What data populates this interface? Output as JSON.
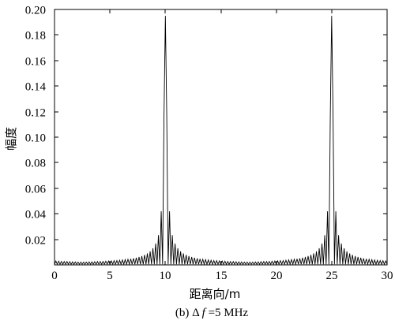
{
  "chart_data": {
    "type": "line",
    "xlabel": "距离向/m",
    "ylabel": "幅度",
    "xlim": [
      0,
      30
    ],
    "ylim": [
      0,
      0.2
    ],
    "xticks": [
      0,
      5,
      10,
      15,
      20,
      25,
      30
    ],
    "xtick_labels": [
      "0",
      "5",
      "10",
      "15",
      "20",
      "25",
      "30"
    ],
    "yticks": [
      0.02,
      0.04,
      0.06,
      0.08,
      0.1,
      0.12,
      0.14,
      0.16,
      0.18,
      0.2
    ],
    "ytick_labels": [
      "0.02",
      "0.04",
      "0.06",
      "0.08",
      "0.10",
      "0.12",
      "0.14",
      "0.16",
      "0.18",
      "0.20"
    ],
    "grid": false,
    "show_legend": false,
    "colors": {
      "line": "#000000",
      "frame": "#000000",
      "background": "#ffffff"
    },
    "x": [
      0,
      0.125,
      0.25,
      0.375,
      0.5,
      0.625,
      0.75,
      0.875,
      1,
      1.125,
      1.25,
      1.375,
      1.5,
      1.625,
      1.75,
      1.875,
      2,
      2.125,
      2.25,
      2.375,
      2.5,
      2.625,
      2.75,
      2.875,
      3,
      3.125,
      3.25,
      3.375,
      3.5,
      3.625,
      3.75,
      3.875,
      4,
      4.125,
      4.25,
      4.375,
      4.5,
      4.625,
      4.75,
      4.875,
      5,
      5.125,
      5.25,
      5.375,
      5.5,
      5.625,
      5.75,
      5.875,
      6,
      6.125,
      6.25,
      6.375,
      6.5,
      6.625,
      6.75,
      6.875,
      7,
      7.125,
      7.25,
      7.375,
      7.5,
      7.625,
      7.75,
      7.875,
      8,
      8.125,
      8.25,
      8.375,
      8.5,
      8.625,
      8.75,
      8.875,
      9,
      9.125,
      9.25,
      9.375,
      9.5,
      9.625,
      9.75,
      9.875,
      10,
      10.125,
      10.25,
      10.375,
      10.5,
      10.625,
      10.75,
      10.875,
      11,
      11.125,
      11.25,
      11.375,
      11.5,
      11.625,
      11.75,
      11.875,
      12,
      12.125,
      12.25,
      12.375,
      12.5,
      12.625,
      12.75,
      12.875,
      13,
      13.125,
      13.25,
      13.375,
      13.5,
      13.625,
      13.75,
      13.875,
      14,
      14.125,
      14.25,
      14.375,
      14.5,
      14.625,
      14.75,
      14.875,
      15,
      15.125,
      15.25,
      15.375,
      15.5,
      15.625,
      15.75,
      15.875,
      16,
      16.125,
      16.25,
      16.375,
      16.5,
      16.625,
      16.75,
      16.875,
      17,
      17.125,
      17.25,
      17.375,
      17.5,
      17.625,
      17.75,
      17.875,
      18,
      18.125,
      18.25,
      18.375,
      18.5,
      18.625,
      18.75,
      18.875,
      19,
      19.125,
      19.25,
      19.375,
      19.5,
      19.625,
      19.75,
      19.875,
      20,
      20.125,
      20.25,
      20.375,
      20.5,
      20.625,
      20.75,
      20.875,
      21,
      21.125,
      21.25,
      21.375,
      21.5,
      21.625,
      21.75,
      21.875,
      22,
      22.125,
      22.25,
      22.375,
      22.5,
      22.625,
      22.75,
      22.875,
      23,
      23.125,
      23.25,
      23.375,
      23.5,
      23.625,
      23.75,
      23.875,
      24,
      24.125,
      24.25,
      24.375,
      24.5,
      24.625,
      24.75,
      24.875,
      25,
      25.125,
      25.25,
      25.375,
      25.5,
      25.625,
      25.75,
      25.875,
      26,
      26.125,
      26.25,
      26.375,
      26.5,
      26.625,
      26.75,
      26.875,
      27,
      27.125,
      27.25,
      27.375,
      27.5,
      27.625,
      27.75,
      27.875,
      28,
      28.125,
      28.25,
      28.375,
      28.5,
      28.625,
      28.75,
      28.875,
      29,
      29.125,
      29.25,
      29.375,
      29.5,
      29.625,
      29.75,
      29.875,
      30
    ],
    "series": [
      {
        "values": [
          0.0005,
          0.003,
          0.0005,
          0.0029,
          0.0005,
          0.0027,
          0.0005,
          0.0026,
          0.0005,
          0.0026,
          0.0005,
          0.0025,
          0.0005,
          0.0024,
          0.0005,
          0.0023,
          0.0005,
          0.0022,
          0.0005,
          0.0022,
          0.0005,
          0.0022,
          0.0005,
          0.0022,
          0.0005,
          0.0023,
          0.0005,
          0.0024,
          0.0005,
          0.0025,
          0.0005,
          0.0026,
          0.0005,
          0.0026,
          0.0005,
          0.0027,
          0.0005,
          0.0029,
          0.0005,
          0.003,
          0.0005,
          0.0031,
          0.0005,
          0.0033,
          0.0005,
          0.0034,
          0.0005,
          0.0036,
          0.0005,
          0.0039,
          0.0005,
          0.0041,
          0.0005,
          0.0044,
          0.0005,
          0.0047,
          0.0005,
          0.0051,
          0.0005,
          0.0056,
          0.0005,
          0.0062,
          0.0005,
          0.0069,
          0.0005,
          0.0078,
          0.0005,
          0.009,
          0.0005,
          0.0106,
          0.0005,
          0.013,
          0.0005,
          0.0167,
          0.0005,
          0.0233,
          0.0005,
          0.042,
          0.0005,
          0.116,
          0.195,
          0.116,
          0.0005,
          0.042,
          0.0005,
          0.0233,
          0.0005,
          0.0167,
          0.0005,
          0.013,
          0.0005,
          0.0106,
          0.0005,
          0.009,
          0.0005,
          0.0078,
          0.0005,
          0.0069,
          0.0005,
          0.0062,
          0.0005,
          0.0056,
          0.0005,
          0.0051,
          0.0005,
          0.0047,
          0.0005,
          0.0044,
          0.0005,
          0.0041,
          0.0005,
          0.0039,
          0.0005,
          0.0036,
          0.0005,
          0.0034,
          0.0005,
          0.0033,
          0.0005,
          0.0031,
          0.0005,
          0.003,
          0.0005,
          0.0029,
          0.0005,
          0.0027,
          0.0005,
          0.0026,
          0.0005,
          0.0026,
          0.0005,
          0.0025,
          0.0005,
          0.0024,
          0.0005,
          0.0023,
          0.0005,
          0.0022,
          0.0005,
          0.0022,
          0.0005,
          0.0022,
          0.0005,
          0.0022,
          0.0005,
          0.0023,
          0.0005,
          0.0024,
          0.0005,
          0.0025,
          0.0005,
          0.0026,
          0.0005,
          0.0026,
          0.0005,
          0.0027,
          0.0005,
          0.0029,
          0.0005,
          0.003,
          0.0005,
          0.0031,
          0.0005,
          0.0033,
          0.0005,
          0.0034,
          0.0005,
          0.0036,
          0.0005,
          0.0039,
          0.0005,
          0.0041,
          0.0005,
          0.0044,
          0.0005,
          0.0047,
          0.0005,
          0.0051,
          0.0005,
          0.0056,
          0.0005,
          0.0062,
          0.0005,
          0.0069,
          0.0005,
          0.0078,
          0.0005,
          0.009,
          0.0005,
          0.0106,
          0.0005,
          0.013,
          0.0005,
          0.0167,
          0.0005,
          0.0233,
          0.0005,
          0.042,
          0.0005,
          0.116,
          0.195,
          0.116,
          0.0005,
          0.042,
          0.0005,
          0.0233,
          0.0005,
          0.0167,
          0.0005,
          0.013,
          0.0005,
          0.0106,
          0.0005,
          0.009,
          0.0005,
          0.0078,
          0.0005,
          0.0069,
          0.0005,
          0.0062,
          0.0005,
          0.0056,
          0.0005,
          0.0051,
          0.0005,
          0.0047,
          0.0005,
          0.0044,
          0.0005,
          0.0041,
          0.0005,
          0.0039,
          0.0005,
          0.0036,
          0.0005,
          0.0034,
          0.0005,
          0.0033,
          0.0005,
          0.0031,
          0.0005
        ]
      }
    ]
  },
  "figure": {
    "caption": {
      "prefix": "(b) Δ ",
      "italic": "f",
      "suffix": " =5 MHz"
    }
  }
}
